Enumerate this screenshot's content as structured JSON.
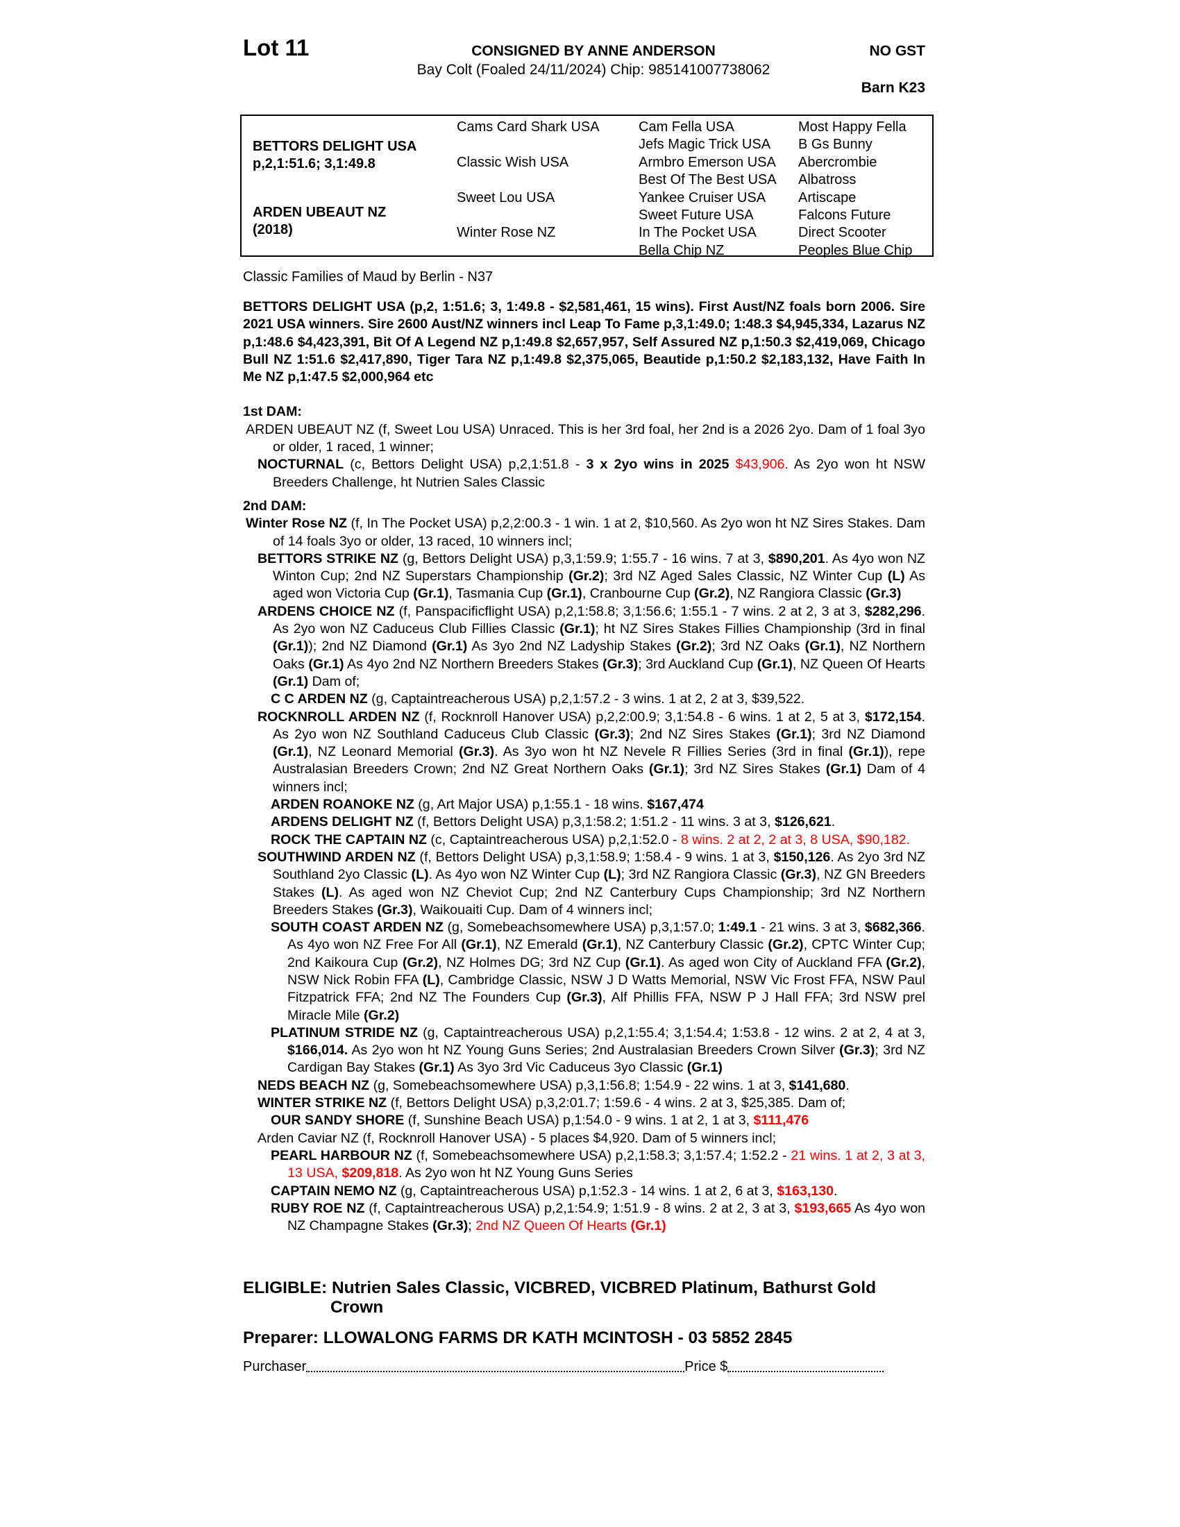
{
  "header": {
    "lot": "Lot 11",
    "consigned": "CONSIGNED BY ANNE ANDERSON",
    "description": "Bay Colt (Foaled 24/11/2024) Chip: 985141007738062",
    "gst": "NO GST",
    "barn": "Barn K23"
  },
  "pedigree": {
    "sire": {
      "name": "BETTORS DELIGHT USA",
      "record": "p,2,1:51.6; 3,1:49.8"
    },
    "dam": {
      "name": "ARDEN UBEAUT NZ",
      "year": "(2018)"
    },
    "gen2": [
      "Cams Card Shark USA",
      "Classic Wish USA",
      "Sweet Lou USA",
      "Winter Rose NZ"
    ],
    "gen3": [
      "Cam Fella USA",
      "Jefs Magic Trick USA",
      "Armbro Emerson USA",
      "Best Of The Best USA",
      "Yankee Cruiser USA",
      "Sweet Future USA",
      "In The Pocket USA",
      "Bella Chip NZ"
    ],
    "gen4": [
      "Most Happy Fella",
      "B Gs Bunny",
      "Abercrombie",
      "Albatross",
      "Artiscape",
      "Falcons Future",
      "Direct Scooter",
      "Peoples Blue Chip"
    ]
  },
  "family": "Classic Families of Maud by Berlin - N37",
  "sire_para": "BETTORS DELIGHT USA (p,2, 1:51.6; 3, 1:49.8 - $2,581,461, 15 wins). First Aust/NZ foals born 2006. Sire 2021 USA winners. Sire 2600 Aust/NZ winners incl Leap To Fame p,3,1:49.0; 1:48.3 $4,945,334, Lazarus NZ p,1:48.6 $4,423,391, Bit Of A Legend NZ p,1:49.8 $2,657,957, Self Assured NZ p,1:50.3 $2,419,069, Chicago Bull NZ 1:51.6 $2,417,890,  Tiger Tara NZ p,1:49.8 $2,375,065, Beautide p,1:50.2 $2,183,132, Have Faith In Me NZ p,1:47.5 $2,000,964 etc",
  "colors": {
    "highlight": "#ff0000"
  },
  "sections": [
    {
      "title": "1st DAM:",
      "paragraphs": [
        {
          "level": 0,
          "segments": [
            [
              "ARDEN UBEAUT NZ (f, Sweet Lou USA) Unraced. This is her 3rd foal, her 2nd is a 2026 2yo. Dam of 1 foal 3yo or older, 1 raced, 1 winner;",
              ""
            ]
          ]
        },
        {
          "level": 1,
          "segments": [
            [
              "NOCTURNAL",
              "b"
            ],
            [
              " (c, Bettors Delight USA) p,2,1:51.8 - ",
              ""
            ],
            [
              "3 x 2yo wins in 2025",
              "b"
            ],
            [
              " ",
              ""
            ],
            [
              "$43,906.",
              "r"
            ],
            [
              " As 2yo won ht NSW Breeders Challenge, ht Nutrien Sales Classic",
              ""
            ]
          ]
        }
      ]
    },
    {
      "title": "2nd DAM:",
      "paragraphs": [
        {
          "level": 0,
          "segments": [
            [
              "Winter Rose NZ",
              "b"
            ],
            [
              " (f, In The Pocket USA) p,2,2:00.3 - 1 win. 1 at 2, $10,560. As 2yo won ht NZ Sires Stakes. Dam of 14 foals 3yo or older, 13 raced, 10 winners incl;",
              ""
            ]
          ]
        },
        {
          "level": 1,
          "segments": [
            [
              "BETTORS STRIKE NZ",
              "b"
            ],
            [
              " (g, Bettors Delight USA) p,3,1:59.9; 1:55.7 - 16 wins. 7 at 3, ",
              ""
            ],
            [
              "$890,201",
              "b"
            ],
            [
              ". As 4yo won NZ Winton Cup; 2nd NZ Superstars Championship ",
              ""
            ],
            [
              "(Gr.2)",
              "b"
            ],
            [
              "; 3rd NZ Aged Sales Classic, NZ Winter Cup ",
              ""
            ],
            [
              "(L)",
              "b"
            ],
            [
              " As aged won Victoria Cup ",
              ""
            ],
            [
              "(Gr.1)",
              "b"
            ],
            [
              ", Tasmania Cup ",
              ""
            ],
            [
              "(Gr.1)",
              "b"
            ],
            [
              ", Cranbourne Cup ",
              ""
            ],
            [
              "(Gr.2)",
              "b"
            ],
            [
              ", NZ Rangiora Classic ",
              ""
            ],
            [
              "(Gr.3)",
              "b"
            ]
          ]
        },
        {
          "level": 1,
          "segments": [
            [
              "ARDENS CHOICE NZ",
              "b"
            ],
            [
              " (f, Panspacificflight USA) p,2,1:58.8; 3,1:56.6; 1:55.1 - 7 wins. 2 at 2, 3 at 3, ",
              ""
            ],
            [
              "$282,296",
              "b"
            ],
            [
              ". As 2yo won NZ Caduceus Club Fillies Classic ",
              ""
            ],
            [
              "(Gr.1)",
              "b"
            ],
            [
              "; ht NZ Sires Stakes Fillies Championship (3rd in final ",
              ""
            ],
            [
              "(Gr.1)",
              "b"
            ],
            [
              "); 2nd NZ Diamond ",
              ""
            ],
            [
              "(Gr.1)",
              "b"
            ],
            [
              " As 3yo 2nd NZ Ladyship Stakes ",
              ""
            ],
            [
              "(Gr.2)",
              "b"
            ],
            [
              "; 3rd NZ Oaks ",
              ""
            ],
            [
              "(Gr.1)",
              "b"
            ],
            [
              ", NZ Northern Oaks ",
              ""
            ],
            [
              "(Gr.1)",
              "b"
            ],
            [
              " As 4yo 2nd NZ Northern Breeders Stakes ",
              ""
            ],
            [
              "(Gr.3)",
              "b"
            ],
            [
              "; 3rd Auckland Cup ",
              ""
            ],
            [
              "(Gr.1)",
              "b"
            ],
            [
              ", NZ Queen Of Hearts ",
              ""
            ],
            [
              "(Gr.1)",
              "b"
            ],
            [
              " Dam of;",
              ""
            ]
          ]
        },
        {
          "level": 2,
          "segments": [
            [
              "C C ARDEN NZ",
              "b"
            ],
            [
              " (g, Captaintreacherous USA) p,2,1:57.2 - 3 wins. 1 at 2, 2 at 3, $39,522.",
              ""
            ]
          ]
        },
        {
          "level": 1,
          "segments": [
            [
              "ROCKNROLL ARDEN NZ",
              "b"
            ],
            [
              " (f, Rocknroll Hanover USA) p,2,2:00.9; 3,1:54.8 - 6 wins. 1 at 2, 5 at 3, ",
              ""
            ],
            [
              "$172,154",
              "b"
            ],
            [
              ". As 2yo won NZ Southland Caduceus Club Classic ",
              ""
            ],
            [
              "(Gr.3)",
              "b"
            ],
            [
              "; 2nd NZ Sires Stakes ",
              ""
            ],
            [
              "(Gr.1)",
              "b"
            ],
            [
              "; 3rd NZ Diamond ",
              ""
            ],
            [
              "(Gr.1)",
              "b"
            ],
            [
              ", NZ Leonard Memorial ",
              ""
            ],
            [
              "(Gr.3)",
              "b"
            ],
            [
              ". As 3yo won ht NZ Nevele R Fillies Series (3rd in final ",
              ""
            ],
            [
              "(Gr.1)",
              "b"
            ],
            [
              "), repe Australasian Breeders Crown; 2nd NZ Great Northern Oaks ",
              ""
            ],
            [
              "(Gr.1)",
              "b"
            ],
            [
              "; 3rd NZ Sires Stakes ",
              ""
            ],
            [
              "(Gr.1)",
              "b"
            ],
            [
              " Dam of 4 winners incl;",
              ""
            ]
          ]
        },
        {
          "level": 2,
          "segments": [
            [
              "ARDEN ROANOKE NZ",
              "b"
            ],
            [
              " (g, Art Major USA) p,1:55.1 - 18 wins. ",
              ""
            ],
            [
              "$167,474",
              "b"
            ]
          ]
        },
        {
          "level": 2,
          "segments": [
            [
              "ARDENS DELIGHT NZ",
              "b"
            ],
            [
              " (f, Bettors Delight USA) p,3,1:58.2; 1:51.2 - 11 wins. 3 at 3, ",
              ""
            ],
            [
              "$126,621",
              "b"
            ],
            [
              ".",
              ""
            ]
          ]
        },
        {
          "level": 2,
          "segments": [
            [
              "ROCK THE CAPTAIN NZ",
              "b"
            ],
            [
              " (c, Captaintreacherous USA) p,2,1:52.0 - ",
              ""
            ],
            [
              "8 wins. 2 at 2, 2 at 3, 8 USA, $90,182.",
              "r"
            ]
          ]
        },
        {
          "level": 1,
          "segments": [
            [
              "SOUTHWIND ARDEN NZ",
              "b"
            ],
            [
              " (f, Bettors Delight USA) p,3,1:58.9; 1:58.4 - 9 wins. 1 at 3, ",
              ""
            ],
            [
              "$150,126",
              "b"
            ],
            [
              ". As 2yo 3rd NZ Southland 2yo Classic ",
              ""
            ],
            [
              "(L)",
              "b"
            ],
            [
              ". As 4yo won NZ Winter Cup ",
              ""
            ],
            [
              "(L)",
              "b"
            ],
            [
              "; 3rd NZ Rangiora Classic ",
              ""
            ],
            [
              "(Gr.3)",
              "b"
            ],
            [
              ", NZ GN Breeders Stakes ",
              ""
            ],
            [
              "(L)",
              "b"
            ],
            [
              ". As aged won NZ Cheviot Cup; 2nd NZ Canterbury Cups Championship; 3rd NZ Northern Breeders Stakes ",
              ""
            ],
            [
              "(Gr.3)",
              "b"
            ],
            [
              ", Waikouaiti Cup. Dam of 4 winners incl;",
              ""
            ]
          ]
        },
        {
          "level": 2,
          "segments": [
            [
              "SOUTH COAST ARDEN NZ",
              "b"
            ],
            [
              " (g, Somebeachsomewhere USA) p,3,1:57.0; ",
              ""
            ],
            [
              "1:49.1",
              "b"
            ],
            [
              " - 21 wins. 3 at 3, ",
              ""
            ],
            [
              "$682,366",
              "b"
            ],
            [
              ". As 4yo won NZ Free For All ",
              ""
            ],
            [
              "(Gr.1)",
              "b"
            ],
            [
              ", NZ Emerald ",
              ""
            ],
            [
              "(Gr.1)",
              "b"
            ],
            [
              ", NZ Canterbury Classic ",
              ""
            ],
            [
              "(Gr.2)",
              "b"
            ],
            [
              ", CPTC Winter Cup; 2nd Kaikoura Cup ",
              ""
            ],
            [
              "(Gr.2)",
              "b"
            ],
            [
              ", NZ Holmes DG; 3rd NZ Cup ",
              ""
            ],
            [
              "(Gr.1)",
              "b"
            ],
            [
              ". As aged won City of Auckland FFA ",
              ""
            ],
            [
              "(Gr.2)",
              "b"
            ],
            [
              ", NSW Nick Robin FFA ",
              ""
            ],
            [
              "(L)",
              "b"
            ],
            [
              ", Cambridge Classic, NSW J D Watts Memorial, NSW Vic Frost FFA, NSW Paul Fitzpatrick FFA; 2nd NZ The Founders Cup ",
              ""
            ],
            [
              "(Gr.3)",
              "b"
            ],
            [
              ",  Alf Phillis FFA, NSW P J Hall FFA; 3rd NSW prel Miracle Mile ",
              ""
            ],
            [
              "(Gr.2)",
              "b"
            ]
          ]
        },
        {
          "level": 2,
          "segments": [
            [
              "PLATINUM STRIDE NZ",
              "b"
            ],
            [
              " (g, Captaintreacherous USA) p,2,1:55.4; 3,1:54.4; 1:53.8 - 12 wins. 2 at 2, 4 at 3, ",
              ""
            ],
            [
              "$166,014.",
              "b"
            ],
            [
              " As 2yo won ht NZ Young Guns Series; 2nd Australasian Breeders Crown Silver ",
              ""
            ],
            [
              "(Gr.3)",
              "b"
            ],
            [
              "; 3rd NZ Cardigan Bay Stakes ",
              ""
            ],
            [
              "(Gr.1)",
              "b"
            ],
            [
              " As 3yo 3rd Vic Caduceus 3yo Classic ",
              ""
            ],
            [
              "(Gr.1)",
              "b"
            ]
          ]
        },
        {
          "level": 1,
          "segments": [
            [
              "NEDS BEACH NZ",
              "b"
            ],
            [
              " (g, Somebeachsomewhere USA) p,3,1:56.8; 1:54.9 - 22 wins. 1 at 3, ",
              ""
            ],
            [
              "$141,680",
              "b"
            ],
            [
              ".",
              ""
            ]
          ]
        },
        {
          "level": 1,
          "segments": [
            [
              "WINTER STRIKE NZ",
              "b"
            ],
            [
              " (f, Bettors Delight USA) p,3,2:01.7; 1:59.6 - 4 wins. 2 at 3, $25,385. Dam of;",
              ""
            ]
          ]
        },
        {
          "level": 2,
          "segments": [
            [
              "OUR SANDY SHORE",
              "b"
            ],
            [
              " (f, Sunshine Beach USA) p,1:54.0 - 9 wins. 1 at 2, 1 at 3, ",
              ""
            ],
            [
              "$111,476",
              "br"
            ]
          ]
        },
        {
          "level": 1,
          "segments": [
            [
              "Arden Caviar NZ (f, Rocknroll Hanover USA) - 5 places $4,920. Dam of 5 winners incl;",
              ""
            ]
          ]
        },
        {
          "level": 2,
          "segments": [
            [
              "PEARL HARBOUR NZ",
              "b"
            ],
            [
              " (f, Somebeachsomewhere USA) p,2,1:58.3; 3,1:57.4; 1:52.2 - ",
              ""
            ],
            [
              "21 wins. 1 at 2, 3 at 3, 13 USA, ",
              "r"
            ],
            [
              "$209,818",
              "br"
            ],
            [
              ". As 2yo won ht NZ Young Guns Series",
              ""
            ]
          ]
        },
        {
          "level": 2,
          "segments": [
            [
              "CAPTAIN NEMO NZ",
              "b"
            ],
            [
              " (g, Captaintreacherous USA) p,1:52.3 - 14 wins. 1 at 2, 6 at 3, ",
              ""
            ],
            [
              "$163,130",
              "br"
            ],
            [
              ".",
              ""
            ]
          ]
        },
        {
          "level": 2,
          "segments": [
            [
              "RUBY ROE NZ",
              "b"
            ],
            [
              " (f, Captaintreacherous USA) p,2,1:54.9; 1:51.9 - 8 wins. 2 at 2, 3 at 3, ",
              ""
            ],
            [
              "$193,665",
              "br"
            ],
            [
              " As 4yo won NZ Champagne Stakes ",
              ""
            ],
            [
              "(Gr.3)",
              "b"
            ],
            [
              "; ",
              ""
            ],
            [
              "2nd NZ Queen Of Hearts ",
              "r"
            ],
            [
              "(Gr.1)",
              "br"
            ]
          ]
        }
      ]
    }
  ],
  "footer": {
    "eligible": "ELIGIBLE: Nutrien Sales Classic, VICBRED, VICBRED Platinum, Bathurst Gold Crown",
    "preparer": "Preparer: LLOWALONG FARMS DR KATH MCINTOSH - 03 5852 2845",
    "purchaser_label": "Purchaser",
    "price_label": "Price $"
  }
}
